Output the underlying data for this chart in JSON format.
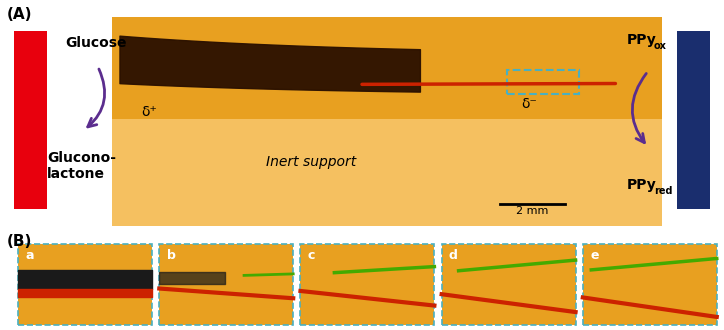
{
  "bg_color": "#ffffff",
  "panel_A_label": "(A)",
  "panel_B_label": "(B)",
  "left_bar_color": "#e8000d",
  "right_bar_color": "#1a2e6e",
  "orange_bg": "#e8a020",
  "light_orange_bg": "#f5c060",
  "inert_support_text": "Inert support",
  "scale_bar_text": "2 mm",
  "delta_plus": "δ⁺",
  "delta_minus": "δ⁻",
  "glucose_text": "Glucose",
  "gluconolactone_text": "Glucono-\nlactone",
  "arrow_color": "#5b2d8e",
  "sub_labels": [
    "a",
    "b",
    "c",
    "d",
    "e"
  ],
  "strip_bg_color": "#e8a020",
  "red_strip_color": "#cc2200",
  "green_strip_color": "#44aa00",
  "dashed_box_color": "#4ab0c0"
}
